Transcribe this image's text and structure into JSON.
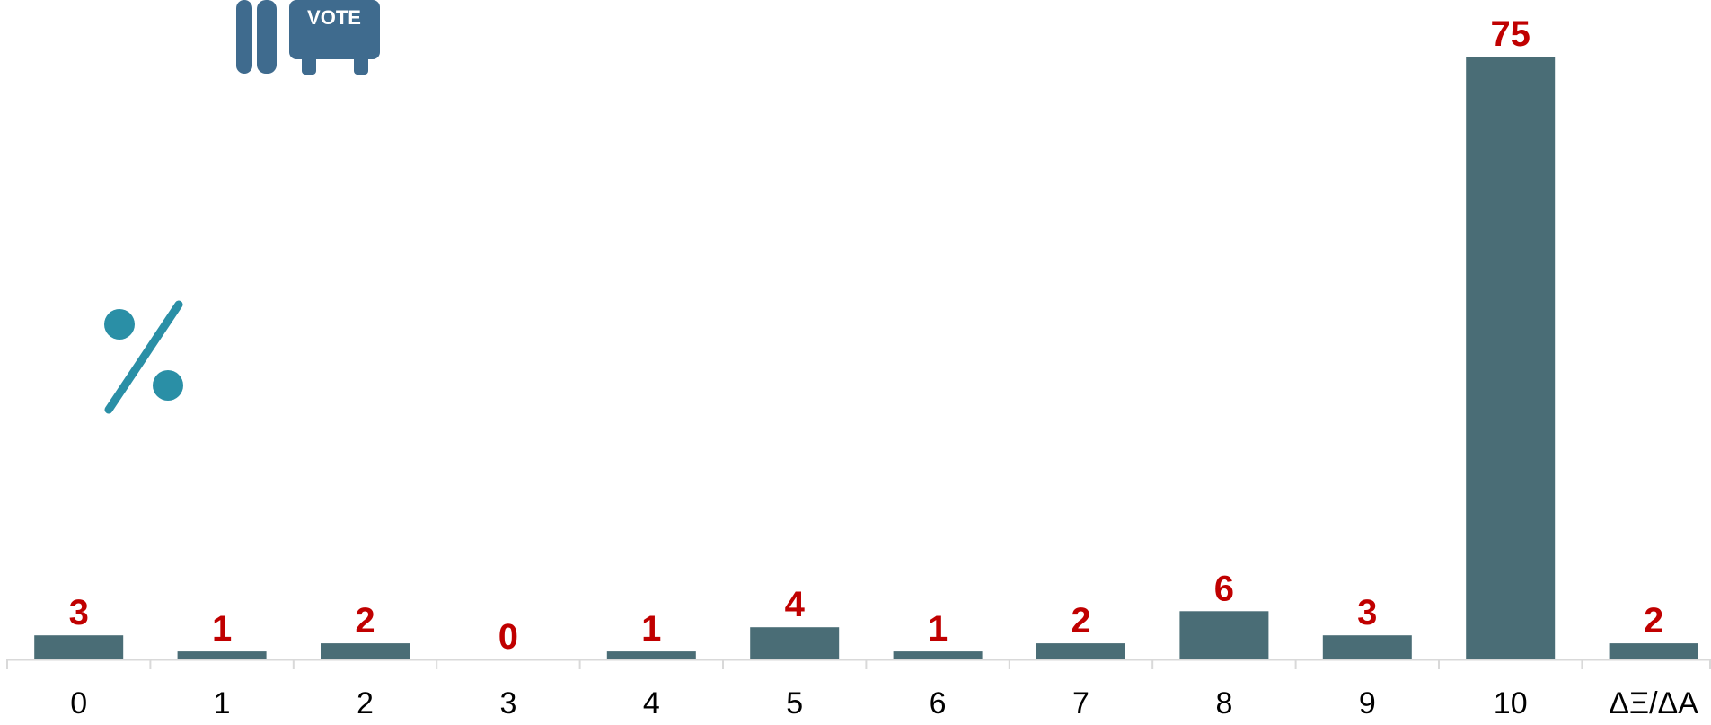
{
  "colors": {
    "bar": "#4A6D76",
    "value_label": "#C00000",
    "axis": "#D9D9D9",
    "tick_label": "#000000",
    "percent_icon": "#2A8FA6",
    "vote_icon": "#3F6B8E"
  },
  "icons": {
    "vote_icon": "vote-ballot-box-icon",
    "vote_text": "VOTE",
    "percent_icon": "percent-icon"
  },
  "chart_data": {
    "type": "bar",
    "categories": [
      "0",
      "1",
      "2",
      "3",
      "4",
      "5",
      "6",
      "7",
      "8",
      "9",
      "10",
      "ΔΞ/ΔΑ"
    ],
    "values": [
      3,
      1,
      2,
      0,
      1,
      4,
      1,
      2,
      6,
      3,
      75,
      2
    ],
    "data_labels": [
      "3",
      "1",
      "2",
      "0",
      "1",
      "4",
      "1",
      "2",
      "6",
      "3",
      "75",
      "2"
    ],
    "ylim": [
      0,
      75
    ],
    "grid": false,
    "legend": "none"
  }
}
